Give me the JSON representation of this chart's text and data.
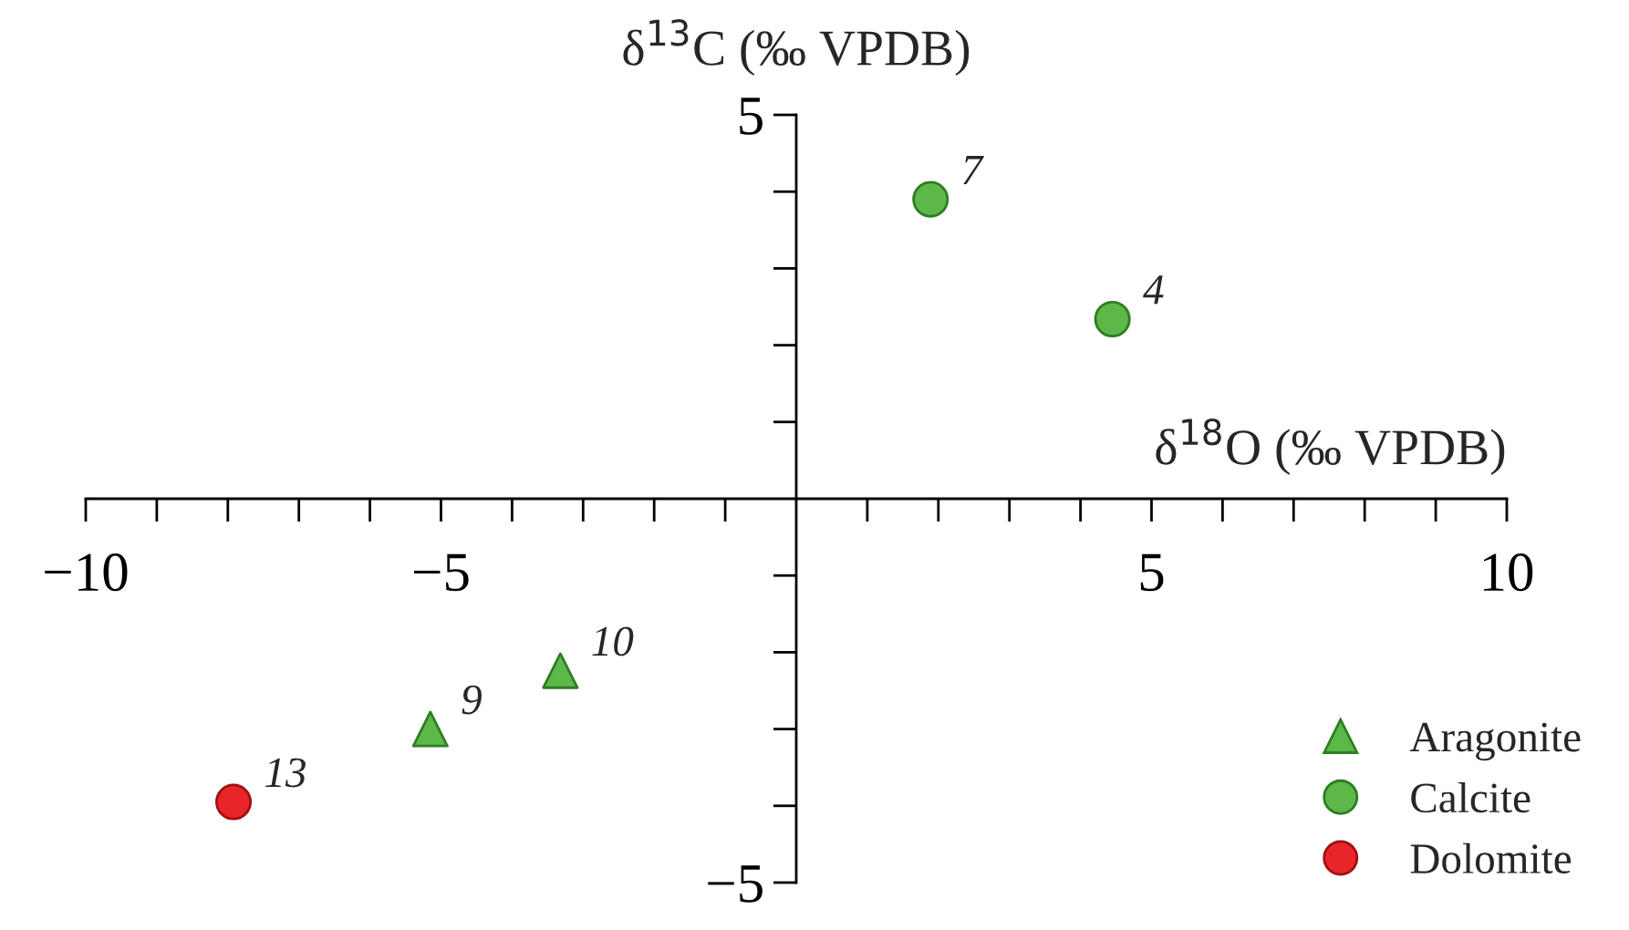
{
  "chart_data": {
    "type": "scatter",
    "xlabel": "δ$^{18}$O (‰ VPDB)",
    "ylabel": "δ$^{13}$C (‰ VPDB)",
    "series": [
      {
        "name": "Aragonite",
        "color": "#5cb848",
        "marker": "triangle",
        "x": [
          -5.15,
          -3.32
        ],
        "values": [
          -3.0,
          -2.24
        ]
      },
      {
        "name": "Calcite",
        "color": "#5cb848",
        "marker": "circle",
        "x": [
          1.89,
          4.45
        ],
        "values": [
          3.9,
          2.34
        ]
      },
      {
        "name": "Dolomite",
        "color": "#e8262a",
        "marker": "circle",
        "x": [
          -7.92
        ],
        "values": [
          -3.95
        ]
      }
    ],
    "annotations": [
      {
        "text": "9",
        "x": -5.15,
        "y": -3.0
      },
      {
        "text": "10",
        "x": -3.32,
        "y": -2.24
      },
      {
        "text": "7",
        "x": 1.89,
        "y": 3.9
      },
      {
        "text": "4",
        "x": 4.45,
        "y": 2.34
      },
      {
        "text": "13",
        "x": -7.92,
        "y": -3.95
      }
    ],
    "xlim": [
      -10,
      10
    ],
    "ylim": [
      -5,
      5
    ],
    "xticks": [
      {
        "value": -10,
        "label": "−10"
      },
      {
        "value": -9,
        "label": null
      },
      {
        "value": -8,
        "label": null
      },
      {
        "value": -7,
        "label": null
      },
      {
        "value": -6,
        "label": null
      },
      {
        "value": -5,
        "label": "−5"
      },
      {
        "value": -4,
        "label": null
      },
      {
        "value": -3,
        "label": null
      },
      {
        "value": -2,
        "label": null
      },
      {
        "value": -1,
        "label": null
      },
      {
        "value": 1,
        "label": null
      },
      {
        "value": 2,
        "label": null
      },
      {
        "value": 3,
        "label": null
      },
      {
        "value": 4,
        "label": null
      },
      5,
      {
        "value": 6,
        "label": null
      },
      {
        "value": 7,
        "label": null
      },
      {
        "value": 8,
        "label": null
      },
      {
        "value": 9,
        "label": null
      },
      10
    ],
    "yticks": [
      {
        "value": -5,
        "label": "−5"
      },
      {
        "value": -4,
        "label": null
      },
      {
        "value": -3,
        "label": null
      },
      {
        "value": -2,
        "label": null
      },
      {
        "value": -1,
        "label": null
      },
      {
        "value": 1,
        "label": null
      },
      {
        "value": 2,
        "label": null
      },
      {
        "value": 3,
        "label": null
      },
      {
        "value": 4,
        "label": null
      },
      5
    ],
    "grid": false,
    "legend": "bottom right"
  }
}
